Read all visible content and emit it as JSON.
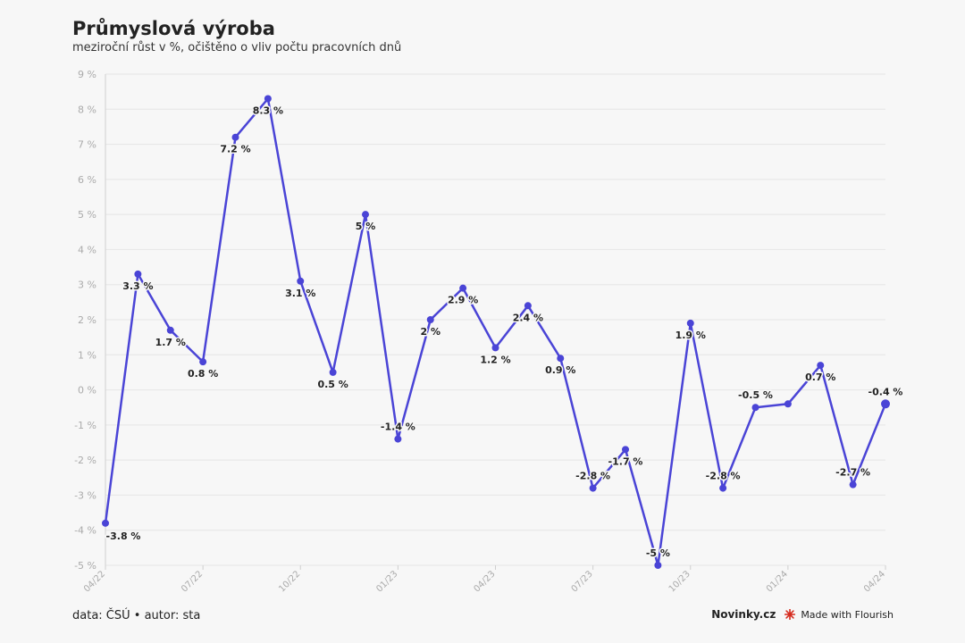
{
  "header": {
    "title": "Průmyslová výroba",
    "subtitle": "meziroční růst v %, očištěno o vliv počtu pracovních dnů"
  },
  "footer": {
    "source": "data: ČSÚ • autor: sta",
    "brand": "Novinky.cz",
    "credit": "Made with Flourish"
  },
  "colors": {
    "line": "#4a44d6",
    "grid": "#e6e6e6",
    "flourish": "#d62d20"
  },
  "chart_data": {
    "type": "line",
    "title": "Průmyslová výroba",
    "subtitle": "meziroční růst v %, očištěno o vliv počtu pracovních dnů",
    "ylim": [
      -5,
      9
    ],
    "y_ticks": [
      "-5 %",
      "-4 %",
      "-3 %",
      "-2 %",
      "-1 %",
      "0 %",
      "1 %",
      "2 %",
      "3 %",
      "4 %",
      "5 %",
      "6 %",
      "7 %",
      "8 %",
      "9 %"
    ],
    "x_tick_labels": [
      "04/22",
      "07/22",
      "10/22",
      "01/23",
      "04/23",
      "07/23",
      "10/23",
      "01/24",
      "04/24"
    ],
    "grid": true,
    "legend": "none",
    "series": [
      {
        "values": [
          -3.8,
          3.3,
          1.7,
          0.8,
          7.2,
          8.3,
          3.1,
          0.5,
          5,
          -1.4,
          2,
          2.9,
          1.2,
          2.4,
          0.9,
          -2.8,
          -1.7,
          -5,
          1.9,
          -2.8,
          -0.5,
          -0.4,
          0.7,
          -2.7,
          -0.4
        ],
        "labels": [
          "-3.8 %",
          "3.3 %",
          "1.7 %",
          "0.8 %",
          "7.2 %",
          "8.3 %",
          "3.1 %",
          "0.5 %",
          "5 %",
          "-1.4 %",
          "2 %",
          "2.9 %",
          "1.2 %",
          "2.4 %",
          "0.9 %",
          "-2.8 %",
          "-1.7 %",
          "-5 %",
          "1.9 %",
          "-2.8 %",
          "-0.5 %",
          "",
          "0.7 %",
          "-2.7 %",
          "-0.4 %"
        ]
      }
    ]
  }
}
